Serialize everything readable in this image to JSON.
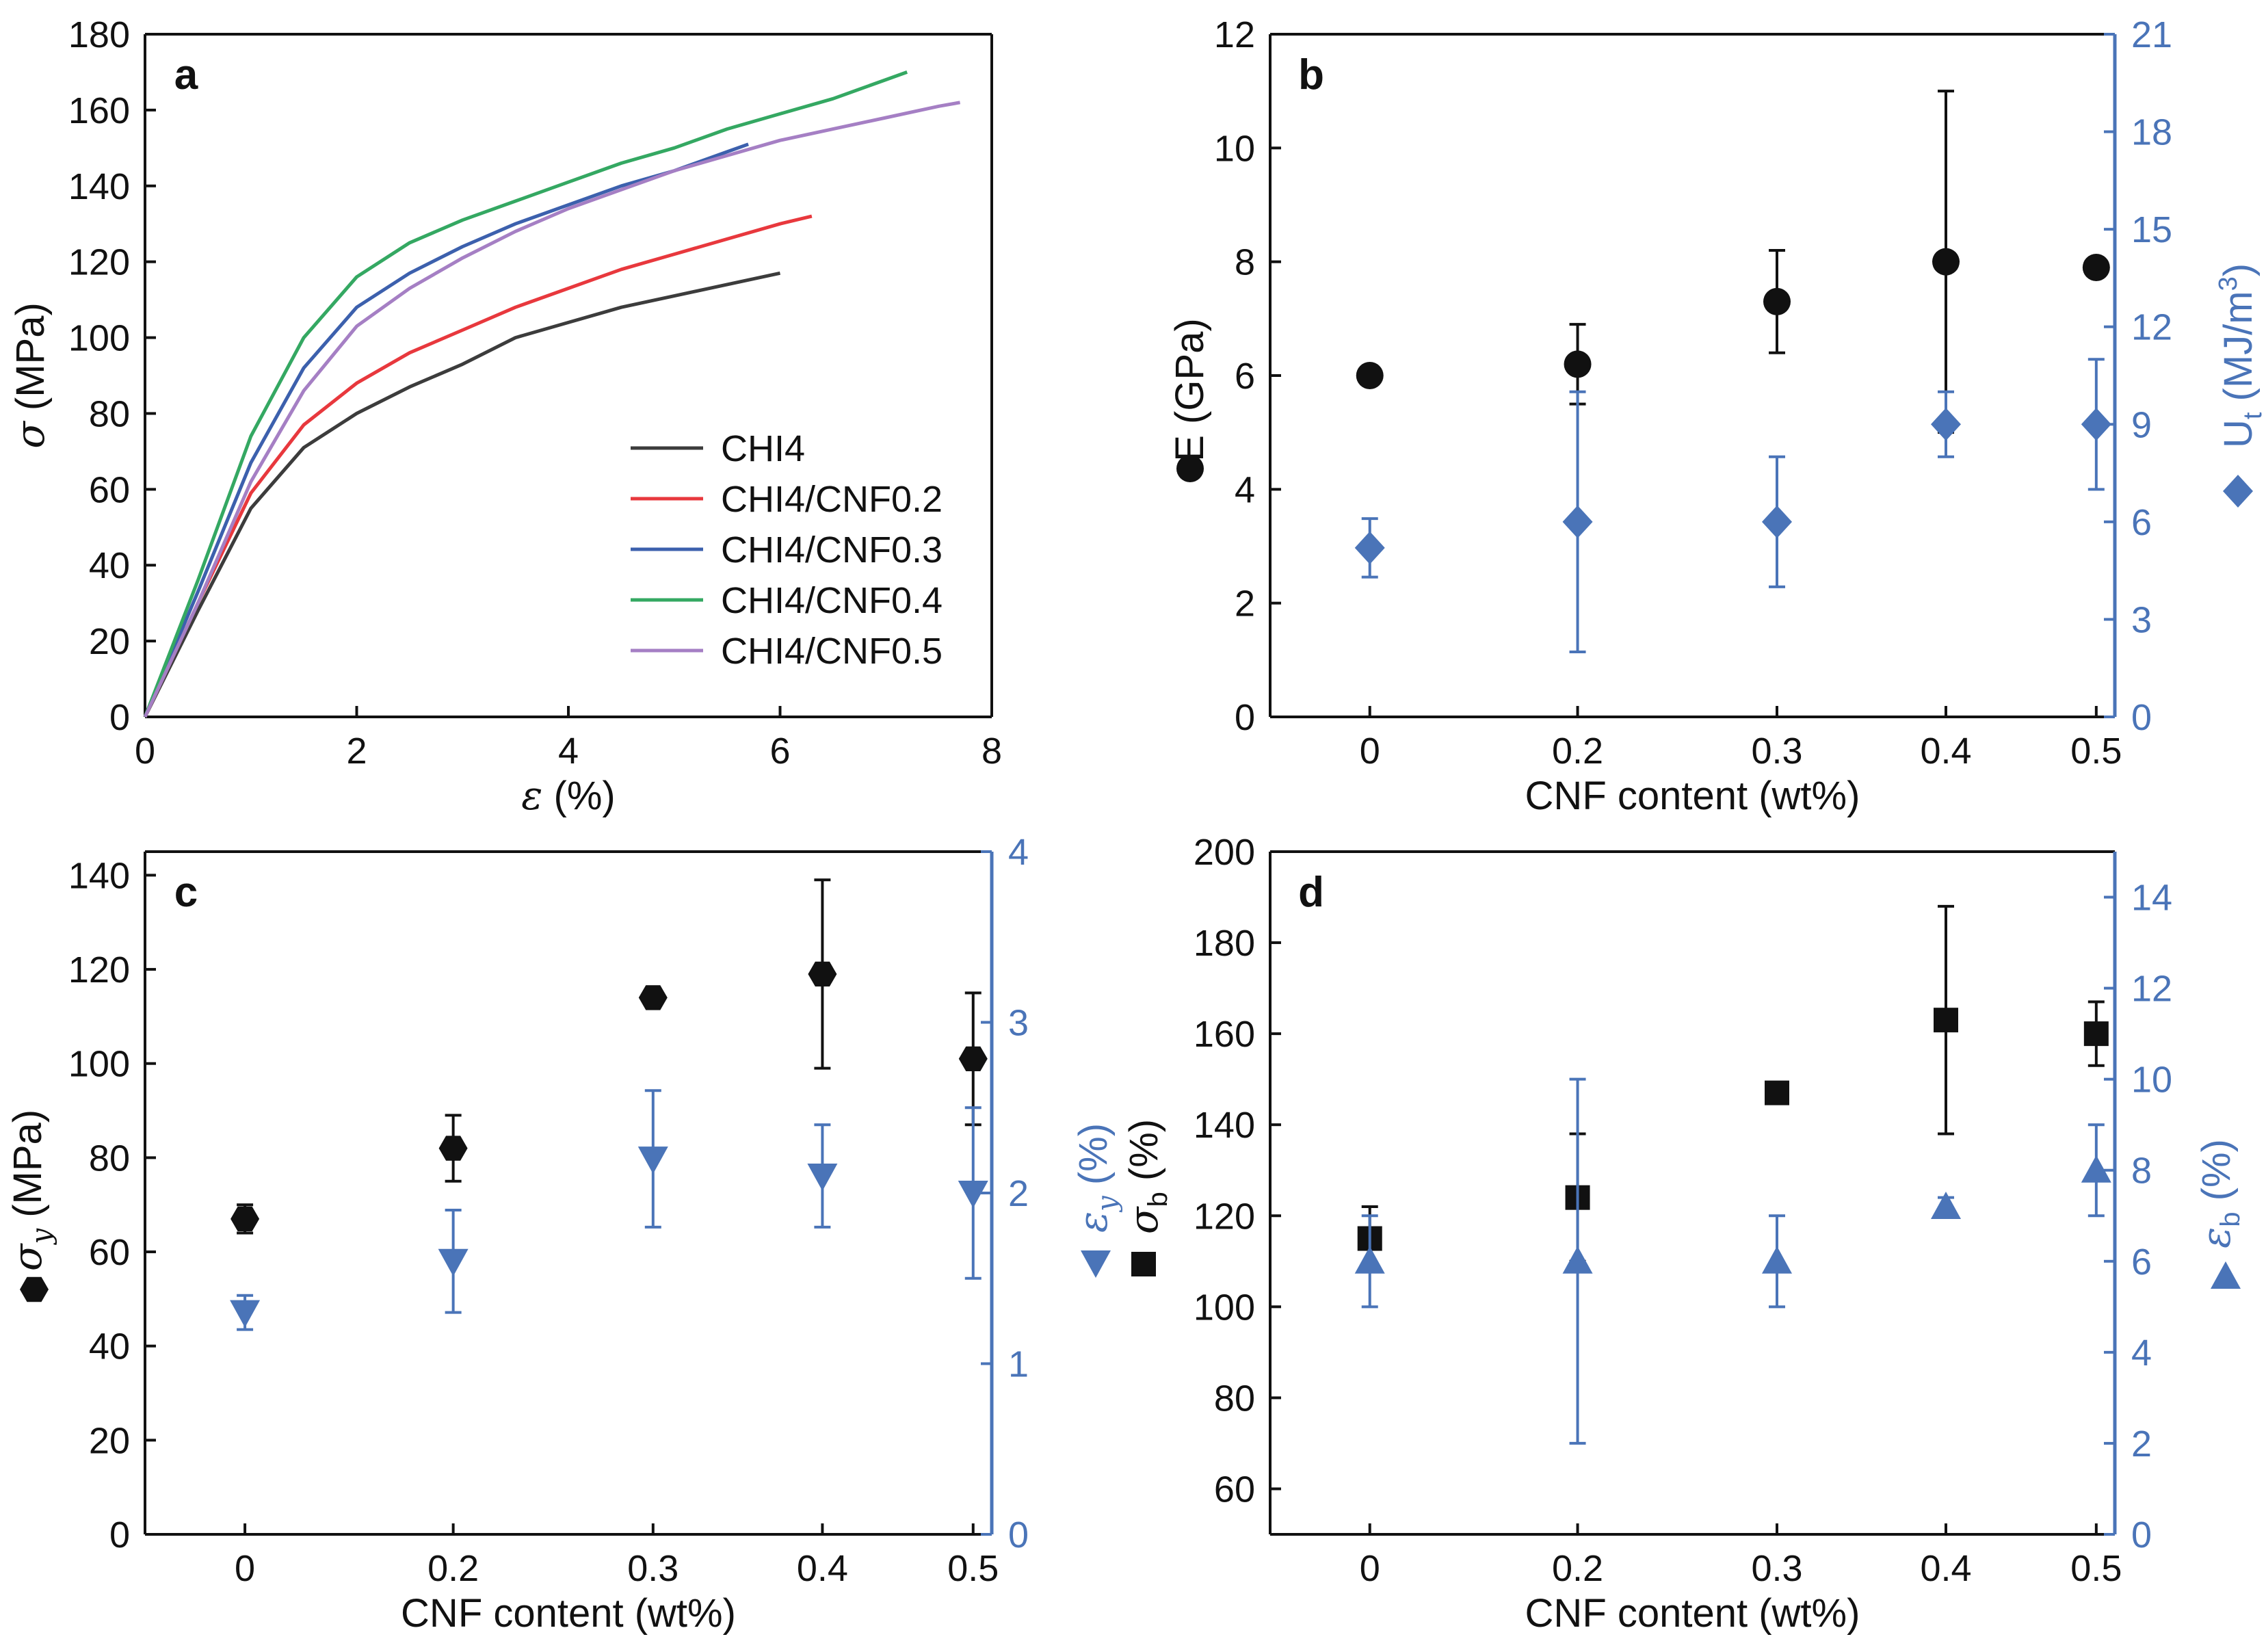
{
  "colors": {
    "black": "#111111",
    "blue": "#4a74b8",
    "CHI4": "#3c3c3c",
    "CHI4/CNF0.2": "#e8383d",
    "CHI4/CNF0.3": "#3c60ad",
    "CHI4/CNF0.4": "#34a862",
    "CHI4/CNF0.5": "#a57fc4"
  },
  "chart_data": [
    {
      "id": "a",
      "type": "line",
      "panel_label": "a",
      "xlabel_sym": "ε",
      "xlabel_unit": " (%)",
      "ylabel_sym": "σ",
      "ylabel_unit": " (MPa)",
      "xlim": [
        0,
        8
      ],
      "ylim": [
        0,
        180
      ],
      "xticks": [
        "0",
        "2",
        "4",
        "6",
        "8"
      ],
      "yticks": [
        "0",
        "20",
        "40",
        "60",
        "80",
        "100",
        "120",
        "140",
        "160",
        "180"
      ],
      "legend_position": "bottom-right",
      "series": [
        {
          "name": "CHI4",
          "points": [
            [
              0,
              0
            ],
            [
              0.5,
              28
            ],
            [
              1.0,
              55
            ],
            [
              1.5,
              71
            ],
            [
              2.0,
              80
            ],
            [
              2.5,
              87
            ],
            [
              3.0,
              93
            ],
            [
              3.5,
              100
            ],
            [
              4.0,
              104
            ],
            [
              4.5,
              108
            ],
            [
              5.0,
              111
            ],
            [
              5.5,
              114
            ],
            [
              6.0,
              117
            ]
          ]
        },
        {
          "name": "CHI4/CNF0.2",
          "points": [
            [
              0,
              0
            ],
            [
              0.5,
              30
            ],
            [
              1.0,
              59
            ],
            [
              1.5,
              77
            ],
            [
              2.0,
              88
            ],
            [
              2.5,
              96
            ],
            [
              3.0,
              102
            ],
            [
              3.5,
              108
            ],
            [
              4.0,
              113
            ],
            [
              4.5,
              118
            ],
            [
              5.0,
              122
            ],
            [
              5.5,
              126
            ],
            [
              6.0,
              130
            ],
            [
              6.3,
              132
            ]
          ]
        },
        {
          "name": "CHI4/CNF0.3",
          "points": [
            [
              0,
              0
            ],
            [
              0.5,
              33
            ],
            [
              1.0,
              67
            ],
            [
              1.5,
              92
            ],
            [
              2.0,
              108
            ],
            [
              2.5,
              117
            ],
            [
              3.0,
              124
            ],
            [
              3.5,
              130
            ],
            [
              4.0,
              135
            ],
            [
              4.5,
              140
            ],
            [
              5.0,
              144
            ],
            [
              5.5,
              149
            ],
            [
              5.7,
              151
            ]
          ]
        },
        {
          "name": "CHI4/CNF0.4",
          "points": [
            [
              0,
              0
            ],
            [
              0.5,
              36
            ],
            [
              1.0,
              74
            ],
            [
              1.5,
              100
            ],
            [
              2.0,
              116
            ],
            [
              2.5,
              125
            ],
            [
              3.0,
              131
            ],
            [
              3.5,
              136
            ],
            [
              4.0,
              141
            ],
            [
              4.5,
              146
            ],
            [
              5.0,
              150
            ],
            [
              5.5,
              155
            ],
            [
              6.0,
              159
            ],
            [
              6.5,
              163
            ],
            [
              7.0,
              168
            ],
            [
              7.2,
              170
            ]
          ]
        },
        {
          "name": "CHI4/CNF0.5",
          "points": [
            [
              0,
              0
            ],
            [
              0.5,
              30
            ],
            [
              1.0,
              62
            ],
            [
              1.5,
              86
            ],
            [
              2.0,
              103
            ],
            [
              2.5,
              113
            ],
            [
              3.0,
              121
            ],
            [
              3.5,
              128
            ],
            [
              4.0,
              134
            ],
            [
              4.5,
              139
            ],
            [
              5.0,
              144
            ],
            [
              5.5,
              148
            ],
            [
              6.0,
              152
            ],
            [
              6.5,
              155
            ],
            [
              7.0,
              158
            ],
            [
              7.5,
              161
            ],
            [
              7.7,
              162
            ]
          ]
        }
      ]
    },
    {
      "id": "b",
      "type": "scatter",
      "panel_label": "b",
      "categories": [
        "0",
        "0.2",
        "0.3",
        "0.4",
        "0.5"
      ],
      "xlabel": "CNF content (wt%)",
      "ylabel": "E (GPa)",
      "y2label_main": "U",
      "y2label_sub": "t",
      "y2label_unit": " (MJ/m",
      "y2label_sup": "3",
      "y2label_close": ")",
      "ylim": [
        0,
        12
      ],
      "y2lim": [
        0,
        21
      ],
      "yticks": [
        "0",
        "2",
        "4",
        "6",
        "8",
        "10",
        "12"
      ],
      "y2ticks": [
        "0",
        "3",
        "6",
        "9",
        "12",
        "15",
        "18",
        "21"
      ],
      "series": [
        {
          "name": "E",
          "axis": "left",
          "marker": "circle",
          "color": "#111111",
          "values": [
            6.0,
            6.2,
            7.3,
            8.0,
            7.9
          ],
          "err_low": [
            null,
            5.5,
            6.4,
            5.0,
            null
          ],
          "err_high": [
            null,
            6.9,
            8.2,
            11.0,
            null
          ]
        },
        {
          "name": "Ut",
          "axis": "right",
          "marker": "diamond",
          "color": "#4a74b8",
          "values": [
            5.2,
            6.0,
            6.0,
            9.0,
            9.0
          ],
          "err_low": [
            4.3,
            2.0,
            4.0,
            8.0,
            7.0
          ],
          "err_high": [
            6.1,
            10.0,
            8.0,
            10.0,
            11.0
          ]
        }
      ]
    },
    {
      "id": "c",
      "type": "scatter",
      "panel_label": "c",
      "categories": [
        "0",
        "0.2",
        "0.3",
        "0.4",
        "0.5"
      ],
      "xlabel": "CNF content (wt%)",
      "ylabel_sym": "σ",
      "ylabel_sub": "y",
      "ylabel_unit": " (MPa)",
      "y2label_sym": "ε",
      "y2label_sub": "y",
      "y2label_unit": " (%)",
      "ylim": [
        0,
        145
      ],
      "y2lim": [
        0,
        4
      ],
      "yticks": [
        "0",
        "20",
        "40",
        "60",
        "80",
        "100",
        "120",
        "140"
      ],
      "y2ticks": [
        "0",
        "1",
        "2",
        "3",
        "4"
      ],
      "series": [
        {
          "name": "σy",
          "axis": "left",
          "marker": "hexagon",
          "color": "#111111",
          "values": [
            67,
            82,
            114,
            119,
            101
          ],
          "err_low": [
            64,
            75,
            null,
            99,
            87
          ],
          "err_high": [
            70,
            89,
            null,
            139,
            115
          ]
        },
        {
          "name": "εy",
          "axis": "right",
          "marker": "triangle-down",
          "color": "#4a74b8",
          "values": [
            1.3,
            1.6,
            2.2,
            2.1,
            2.0
          ],
          "err_low": [
            1.2,
            1.3,
            1.8,
            1.8,
            1.5
          ],
          "err_high": [
            1.4,
            1.9,
            2.6,
            2.4,
            2.5
          ]
        }
      ]
    },
    {
      "id": "d",
      "type": "scatter",
      "panel_label": "d",
      "categories": [
        "0",
        "0.2",
        "0.3",
        "0.4",
        "0.5"
      ],
      "xlabel": "CNF content (wt%)",
      "ylabel_sym": "σ",
      "ylabel_sub": "b",
      "ylabel_unit": " (%)",
      "y2label_sym": "ε",
      "y2label_sub": "b",
      "y2label_unit": " (%)",
      "ylim": [
        50,
        200
      ],
      "y2lim": [
        0,
        15
      ],
      "yticks": [
        "60",
        "80",
        "100",
        "120",
        "140",
        "160",
        "180",
        "200"
      ],
      "y2ticks": [
        "0",
        "2",
        "4",
        "6",
        "8",
        "10",
        "12",
        "14"
      ],
      "series": [
        {
          "name": "σb",
          "axis": "left",
          "marker": "square",
          "color": "#111111",
          "values": [
            115,
            124,
            147,
            163,
            160
          ],
          "err_low": [
            108,
            110,
            145,
            138,
            153
          ],
          "err_high": [
            122,
            138,
            149,
            188,
            167
          ]
        },
        {
          "name": "εb",
          "axis": "right",
          "marker": "triangle-up",
          "color": "#4a74b8",
          "values": [
            6.0,
            6.0,
            6.0,
            7.2,
            8.0
          ],
          "err_low": [
            5.0,
            2.0,
            5.0,
            7.0,
            7.0
          ],
          "err_high": [
            7.0,
            10.0,
            7.0,
            7.4,
            9.0
          ]
        }
      ]
    }
  ]
}
